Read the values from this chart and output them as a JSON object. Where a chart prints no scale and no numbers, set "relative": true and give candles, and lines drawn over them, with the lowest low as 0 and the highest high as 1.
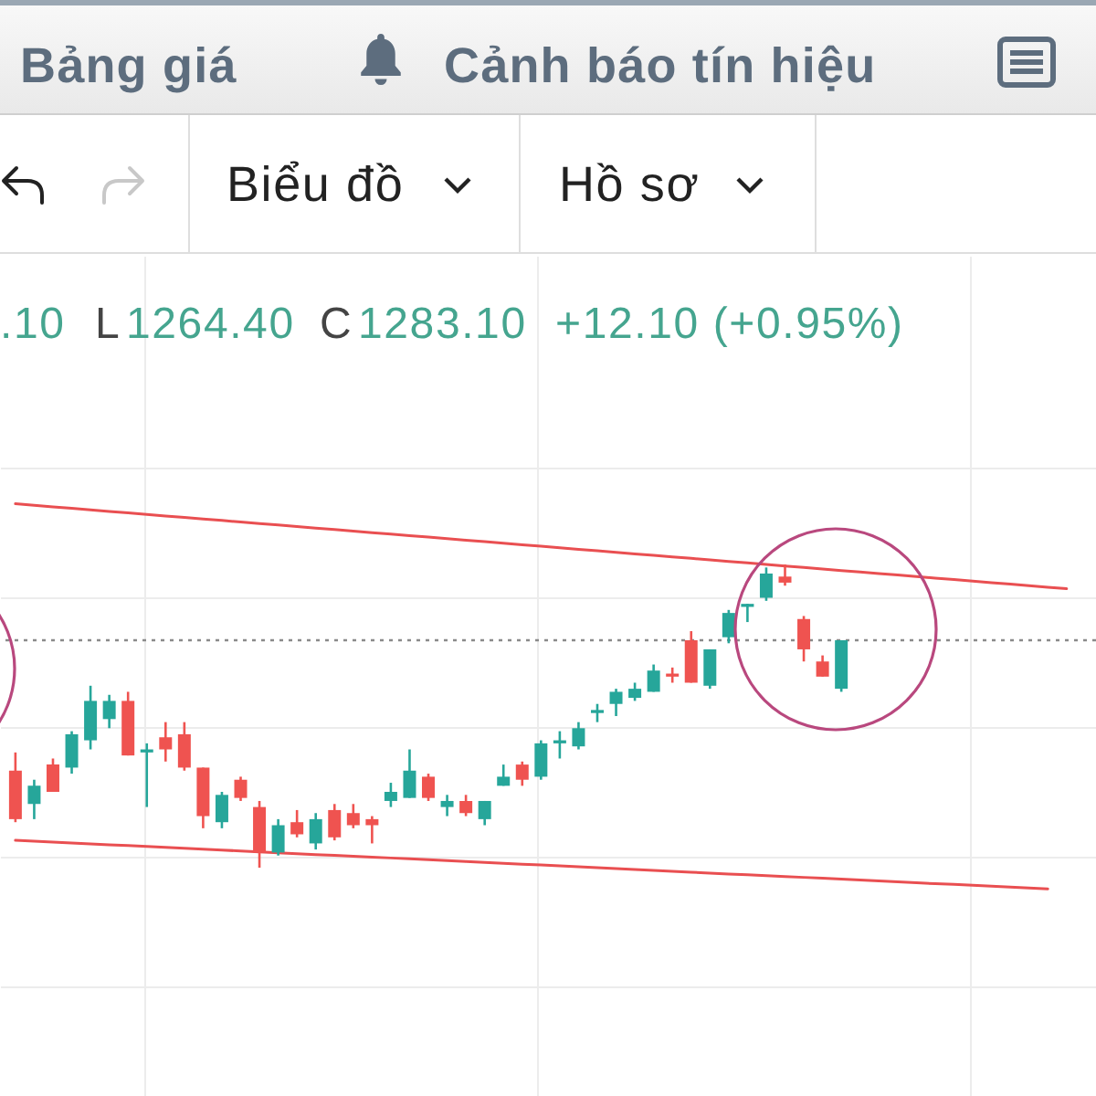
{
  "chart_data": {
    "type": "candlestick",
    "annotations": [
      "Bảng giá",
      "Cảnh báo tín hiệu",
      "Biểu đồ",
      "Hồ sơ",
      ".10",
      "L",
      "1264.40",
      "C",
      "1283.10",
      "+12.10 (+0.95%)"
    ],
    "categories": [
      null,
      null,
      null,
      null,
      null,
      null,
      null,
      null,
      null,
      null,
      null,
      null,
      null,
      null,
      null,
      null,
      null,
      null,
      null,
      null,
      null,
      null,
      null,
      null,
      null,
      null,
      null,
      null,
      null,
      null,
      null,
      null,
      null,
      null,
      null,
      null,
      null,
      null,
      null,
      null,
      null,
      null,
      null,
      null,
      null,
      null,
      null,
      null,
      null,
      null,
      null,
      null,
      null,
      null,
      null,
      null,
      null
    ],
    "ohlc": [
      [
        0.32,
        0.38,
        0.15,
        0.16
      ],
      [
        0.21,
        0.29,
        0.16,
        0.27
      ],
      [
        0.34,
        0.36,
        0.25,
        0.25
      ],
      [
        0.33,
        0.45,
        0.31,
        0.44
      ],
      [
        0.42,
        0.6,
        0.39,
        0.55
      ],
      [
        0.49,
        0.57,
        0.46,
        0.55
      ],
      [
        0.55,
        0.58,
        0.37,
        0.37
      ],
      [
        0.38,
        0.41,
        0.2,
        0.39
      ],
      [
        0.43,
        0.48,
        0.35,
        0.39
      ],
      [
        0.44,
        0.48,
        0.32,
        0.33
      ],
      [
        0.33,
        0.33,
        0.13,
        0.17
      ],
      [
        0.15,
        0.25,
        0.13,
        0.24
      ],
      [
        0.29,
        0.3,
        0.22,
        0.23
      ],
      [
        0.2,
        0.22,
        0,
        0.05
      ],
      [
        0.05,
        0.16,
        0.04,
        0.14
      ],
      [
        0.15,
        0.19,
        0.1,
        0.11
      ],
      [
        0.08,
        0.18,
        0.06,
        0.16
      ],
      [
        0.19,
        0.21,
        0.09,
        0.1
      ],
      [
        0.18,
        0.21,
        0.13,
        0.14
      ],
      [
        0.16,
        0.17,
        0.08,
        0.14
      ],
      [
        0.22,
        0.28,
        0.2,
        0.25
      ],
      [
        0.23,
        0.39,
        0.23,
        0.32
      ],
      [
        0.3,
        0.31,
        0.22,
        0.23
      ],
      [
        0.2,
        0.24,
        0.17,
        0.22
      ],
      [
        0.22,
        0.24,
        0.17,
        0.18
      ],
      [
        0.16,
        0.22,
        0.14,
        0.22
      ],
      [
        0.27,
        0.34,
        0.27,
        0.3
      ],
      [
        0.34,
        0.35,
        0.27,
        0.29
      ],
      [
        0.3,
        0.42,
        0.29,
        0.41
      ],
      [
        0.41,
        0.45,
        0.36,
        0.42
      ],
      [
        0.4,
        0.48,
        0.39,
        0.46
      ],
      [
        0.51,
        0.54,
        0.48,
        0.52
      ],
      [
        0.54,
        0.59,
        0.5,
        0.58
      ],
      [
        0.56,
        0.61,
        0.55,
        0.59
      ],
      [
        0.58,
        0.67,
        0.58,
        0.65
      ],
      [
        0.64,
        0.66,
        0.61,
        0.63
      ],
      [
        0.75,
        0.78,
        0.61,
        0.61
      ],
      [
        0.6,
        0.72,
        0.59,
        0.72
      ],
      [
        0.76,
        0.85,
        0.74,
        0.84
      ],
      [
        0.86,
        0.87,
        0.81,
        0.87
      ],
      [
        0.89,
        0.99,
        0.88,
        0.97
      ],
      [
        0.96,
        1,
        0.93,
        0.94
      ],
      [
        0.82,
        0.83,
        0.68,
        0.72
      ],
      [
        0.68,
        0.7,
        0.63,
        0.63
      ],
      [
        0.59,
        0.75,
        0.58,
        0.75
      ],
      null,
      null,
      null,
      null,
      null,
      null,
      null,
      null,
      null,
      null,
      null,
      null
    ],
    "colors": [
      "#ef5350",
      "#26a69a",
      "#ef5350",
      "#26a69a",
      "#26a69a",
      "#26a69a",
      "#ef5350",
      "#26a69a",
      "#ef5350",
      "#ef5350",
      "#ef5350",
      "#26a69a",
      "#ef5350",
      "#ef5350",
      "#26a69a",
      "#ef5350",
      "#26a69a",
      "#ef5350",
      "#ef5350",
      "#ef5350",
      "#26a69a",
      "#26a69a",
      "#ef5350",
      "#26a69a",
      "#ef5350",
      "#26a69a",
      "#26a69a",
      "#ef5350",
      "#26a69a",
      "#26a69a",
      "#26a69a",
      "#26a69a",
      "#26a69a",
      "#26a69a",
      "#26a69a",
      "#ef5350",
      "#ef5350",
      "#26a69a",
      "#26a69a",
      "#26a69a",
      "#26a69a",
      "#ef5350",
      "#ef5350",
      "#ef5350",
      "#26a69a",
      null,
      null,
      null,
      null,
      null,
      null,
      null,
      null,
      null,
      null,
      null,
      null
    ],
    "relative": true,
    "series": [
      {
        "type": "line",
        "color": "#e94f51",
        "values": [
          1.2,
          1.195,
          1.19,
          1.185,
          1.18,
          1.175,
          1.17,
          1.165,
          1.16,
          1.155,
          1.15,
          1.145,
          1.14,
          1.135,
          1.13,
          1.125,
          1.12,
          1.115,
          1.11,
          1.105,
          1.1,
          1.095,
          1.09,
          1.085,
          1.08,
          1.075,
          1.07,
          1.065,
          1.06,
          1.055,
          1.05,
          1.045,
          1.04,
          1.035,
          1.03,
          1.025,
          1.02,
          1.015,
          1.01,
          1.005,
          1,
          0.995,
          0.99,
          0.985,
          0.98,
          0.975,
          0.97,
          0.965,
          0.96,
          0.955,
          0.95,
          0.945,
          0.94,
          0.935,
          0.93,
          0.925,
          0.92
        ]
      },
      {
        "type": "line",
        "color": "#e94f51",
        "values": [
          0.09,
          0.087,
          0.084,
          0.081,
          0.078,
          0.075,
          0.073,
          0.07,
          0.067,
          0.064,
          0.061,
          0.058,
          0.055,
          0.052,
          0.049,
          0.046,
          0.043,
          0.041,
          0.038,
          0.035,
          0.032,
          0.029,
          0.026,
          0.023,
          0.02,
          0.017,
          0.014,
          0.011,
          0.009,
          0.006,
          0.003,
          0,
          -0.003,
          -0.006,
          -0.009,
          -0.012,
          -0.015,
          -0.018,
          -0.021,
          -0.023,
          -0.026,
          -0.029,
          -0.032,
          -0.035,
          -0.038,
          -0.041,
          -0.044,
          -0.047,
          -0.05,
          -0.053,
          -0.055,
          -0.058,
          -0.061,
          -0.064,
          -0.067,
          -0.07,
          null
        ]
      }
    ],
    "ref_lines": [
      {
        "axis": "y",
        "value": 0.75,
        "color": "#8a8a8a",
        "line_style": "dotted"
      }
    ],
    "grid": true
  }
}
